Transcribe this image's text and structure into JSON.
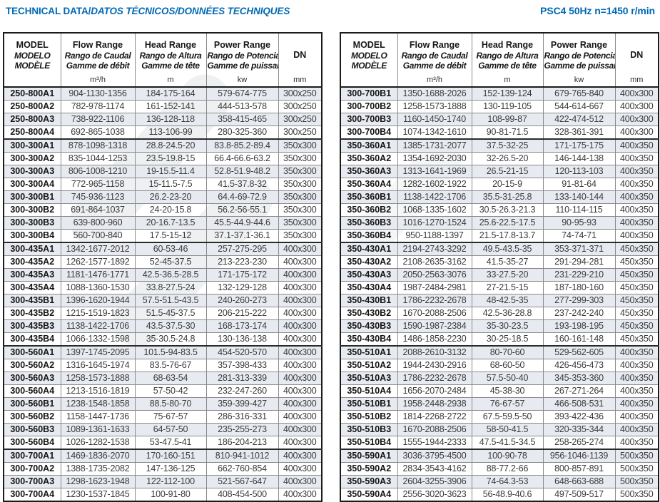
{
  "titles": {
    "left_primary": "TECHNICAL DATA/",
    "left_secondary": "DATOS TÉCNICOS/DONNÉES TECHNIQUES",
    "right": "PSC4 50Hz n=1450 r/min"
  },
  "colors": {
    "accent_blue": "#0069b4",
    "row_shade": "#e7ebf1",
    "grid_line": "#8a8a8a",
    "heavy_line": "#1b1b1b",
    "body_text": "#3a3a3a"
  },
  "header": {
    "model_lines": [
      "MODEL",
      "MODELO",
      "MODÈLE"
    ],
    "flow_lines": [
      "Flow Range",
      "Rango de Caudal",
      "Gamme de débit"
    ],
    "flow_unit": "m³/h",
    "head_lines": [
      "Head Range",
      "Rango de Altura",
      "Gamme de tête"
    ],
    "head_unit": "m",
    "power_lines": [
      "Power Range",
      "Rango de Potencia",
      "Gamme de puissance"
    ],
    "power_unit": "kw",
    "dn_label": "DN",
    "dn_unit": "mm"
  },
  "tables": [
    {
      "rows": [
        [
          "250-800A1",
          "904-1130-1356",
          "184-175-164",
          "579-674-775",
          "300x250"
        ],
        [
          "250-800A2",
          "782-978-1174",
          "161-152-141",
          "444-513-578",
          "300x250"
        ],
        [
          "250-800A3",
          "738-922-1106",
          "136-128-118",
          "358-415-465",
          "300x250"
        ],
        [
          "250-800A4",
          "692-865-1038",
          "113-106-99",
          "280-325-360",
          "300x250"
        ],
        [
          "300-300A1",
          "878-1098-1318",
          "28.8-24.5-20",
          "83.8-85.2-89.4",
          "350x300"
        ],
        [
          "300-300A2",
          "835-1044-1253",
          "23.5-19.8-15",
          "66.4-66.6-63.2",
          "350x300"
        ],
        [
          "300-300A3",
          "806-1008-1210",
          "19-15.5-11.4",
          "52.8-51.9-48.2",
          "350x300"
        ],
        [
          "300-300A4",
          "772-965-1158",
          "15-11.5-7.5",
          "41.5-37.8-32",
          "350x300"
        ],
        [
          "300-300B1",
          "745-936-1123",
          "26.2-23-20",
          "64.4-69-72.9",
          "350x300"
        ],
        [
          "300-300B2",
          "691-864-1037",
          "24-20-15.8",
          "56.2-56-55.1",
          "350x300"
        ],
        [
          "300-300B3",
          "639-800-960",
          "20-16.7-13.5",
          "45.5-44.9-44.6",
          "350x300"
        ],
        [
          "300-300B4",
          "560-700-840",
          "17.5-15-12",
          "37.1-37.1-36.1",
          "350x300"
        ],
        [
          "300-435A1",
          "1342-1677-2012",
          "60-53-46",
          "257-275-295",
          "400x300"
        ],
        [
          "300-435A2",
          "1262-1577-1892",
          "52-45-37.5",
          "213-223-230",
          "400x300"
        ],
        [
          "300-435A3",
          "1181-1476-1771",
          "42.5-36.5-28.5",
          "171-175-172",
          "400x300"
        ],
        [
          "300-435A4",
          "1088-1360-1530",
          "33.8-27.5-24",
          "132-129-128",
          "400x300"
        ],
        [
          "300-435B1",
          "1396-1620-1944",
          "57.5-51.5-43.5",
          "240-260-273",
          "400x300"
        ],
        [
          "300-435B2",
          "1215-1519-1823",
          "51.5-45-37.5",
          "206-215-222",
          "400x300"
        ],
        [
          "300-435B3",
          "1138-1422-1706",
          "43.5-37.5-30",
          "168-173-174",
          "400x300"
        ],
        [
          "300-435B4",
          "1066-1332-1598",
          "35-30.5-24.8",
          "130-136-138",
          "400x300"
        ],
        [
          "300-560A1",
          "1397-1745-2095",
          "101.5-94-83.5",
          "454-520-570",
          "400x300"
        ],
        [
          "300-560A2",
          "1316-1645-1974",
          "83.5-76-67",
          "357-398-433",
          "400x300"
        ],
        [
          "300-560A3",
          "1258-1573-1888",
          "68-63-54",
          "281-313-339",
          "400x300"
        ],
        [
          "300-560A4",
          "1213-1516-1819",
          "57-50-42",
          "232-247-260",
          "400x300"
        ],
        [
          "300-560B1",
          "1238-1548-1858",
          "88.5-80-70",
          "359-399-427",
          "400x300"
        ],
        [
          "300-560B2",
          "1158-1447-1736",
          "75-67-57",
          "286-316-331",
          "400x300"
        ],
        [
          "300-560B3",
          "1089-1361-1633",
          "64-57-50",
          "235-255-273",
          "400x300"
        ],
        [
          "300-560B4",
          "1026-1282-1538",
          "53-47.5-41",
          "186-204-213",
          "400x300"
        ],
        [
          "300-700A1",
          "1469-1836-2070",
          "170-160-151",
          "810-941-1012",
          "400x300"
        ],
        [
          "300-700A2",
          "1388-1735-2082",
          "147-136-125",
          "662-760-854",
          "400x300"
        ],
        [
          "300-700A3",
          "1298-1623-1948",
          "122-112-100",
          "521-567-647",
          "400x300"
        ],
        [
          "300-700A4",
          "1230-1537-1845",
          "100-91-80",
          "408-454-500",
          "400x300"
        ]
      ]
    },
    {
      "rows": [
        [
          "300-700B1",
          "1350-1688-2026",
          "152-139-124",
          "679-765-840",
          "400x300"
        ],
        [
          "300-700B2",
          "1258-1573-1888",
          "130-119-105",
          "544-614-667",
          "400x300"
        ],
        [
          "300-700B3",
          "1160-1450-1740",
          "108-99-87",
          "422-474-512",
          "400x300"
        ],
        [
          "300-700B4",
          "1074-1342-1610",
          "90-81-71.5",
          "328-361-391",
          "400x300"
        ],
        [
          "350-360A1",
          "1385-1731-2077",
          "37.5-32-25",
          "171-175-175",
          "400x350"
        ],
        [
          "350-360A2",
          "1354-1692-2030",
          "32-26.5-20",
          "146-144-138",
          "400x350"
        ],
        [
          "350-360A3",
          "1313-1641-1969",
          "26.5-21-15",
          "120-113-103",
          "400x350"
        ],
        [
          "350-360A4",
          "1282-1602-1922",
          "20-15-9",
          "91-81-64",
          "400x350"
        ],
        [
          "350-360B1",
          "1138-1422-1706",
          "35.5-31-25.8",
          "133-140-144",
          "400x350"
        ],
        [
          "350-360B2",
          "1068-1335-1602",
          "30.5-26.3-21.3",
          "110-114-115",
          "400x350"
        ],
        [
          "350-360B3",
          "1016-1270-1524",
          "25.6-22.5-17.5",
          "90-95-93",
          "400x350"
        ],
        [
          "350-360B4",
          "950-1188-1397",
          "21.5-17.8-13.7",
          "74-74-71",
          "400x350"
        ],
        [
          "350-430A1",
          "2194-2743-3292",
          "49.5-43.5-35",
          "353-371-371",
          "450x350"
        ],
        [
          "350-430A2",
          "2108-2635-3162",
          "41.5-35-27",
          "291-294-281",
          "450x350"
        ],
        [
          "350-430A3",
          "2050-2563-3076",
          "33-27.5-20",
          "231-229-210",
          "450x350"
        ],
        [
          "350-430A4",
          "1987-2484-2981",
          "27-21.5-15",
          "187-180-160",
          "450x350"
        ],
        [
          "350-430B1",
          "1786-2232-2678",
          "48-42.5-35",
          "277-299-303",
          "450x350"
        ],
        [
          "350-430B2",
          "1670-2088-2506",
          "42.5-36-28.8",
          "237-242-240",
          "450x350"
        ],
        [
          "350-430B3",
          "1590-1987-2384",
          "35-30-23.5",
          "193-198-195",
          "450x350"
        ],
        [
          "350-430B4",
          "1486-1858-2230",
          "30-25-18.5",
          "160-161-148",
          "450x350"
        ],
        [
          "350-510A1",
          "2088-2610-3132",
          "80-70-60",
          "529-562-605",
          "400x350"
        ],
        [
          "350-510A2",
          "1944-2430-2916",
          "68-60-50",
          "426-456-473",
          "400x350"
        ],
        [
          "350-510A3",
          "1786-2232-2678",
          "57.5-50-40",
          "345-353-360",
          "400x350"
        ],
        [
          "350-510A4",
          "1656-2070-2484",
          "45-38-30",
          "267-271-264",
          "400x350"
        ],
        [
          "350-510B1",
          "1958-2448-2938",
          "76-67-57",
          "466-508-531",
          "400x350"
        ],
        [
          "350-510B2",
          "1814-2268-2722",
          "67.5-59.5-50",
          "393-422-436",
          "400x350"
        ],
        [
          "350-510B3",
          "1670-2088-2506",
          "58-50-41.5",
          "320-335-344",
          "400x350"
        ],
        [
          "350-510B4",
          "1555-1944-2333",
          "47.5-41.5-34.5",
          "258-265-274",
          "400x350"
        ],
        [
          "350-590A1",
          "3036-3795-4500",
          "100-90-78",
          "956-1046-1139",
          "500x350"
        ],
        [
          "350-590A2",
          "2834-3543-4162",
          "88-77.2-66",
          "800-857-891",
          "500x350"
        ],
        [
          "350-590A3",
          "2604-3255-3906",
          "74-64.3-53",
          "648-663-688",
          "500x350"
        ],
        [
          "350-590A4",
          "2556-3020-3623",
          "56-48.9-40.6",
          "497-509-517",
          "500x350"
        ]
      ]
    }
  ]
}
